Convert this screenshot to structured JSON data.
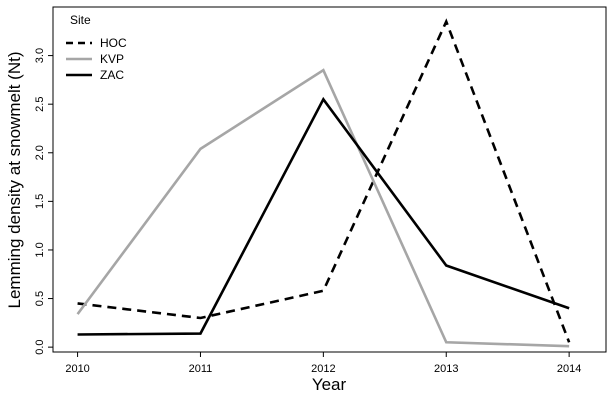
{
  "chart_data": {
    "type": "line",
    "title": "",
    "xlabel": "Year",
    "ylabel": "Lemming density at snowmelt (Nt)",
    "x": [
      2010,
      2011,
      2012,
      2013,
      2014
    ],
    "x_ticks": [
      "2010",
      "2011",
      "2012",
      "2013",
      "2014"
    ],
    "y_ticks": [
      "0.0",
      "0.5",
      "1.0",
      "1.5",
      "2.0",
      "2.5",
      "3.0"
    ],
    "xlim": [
      2009.8,
      2014.3
    ],
    "ylim": [
      -0.05,
      3.5
    ],
    "grid": false,
    "legend": {
      "title": "Site",
      "position": "top-left"
    },
    "series": [
      {
        "name": "HOC",
        "values": [
          0.45,
          0.3,
          0.58,
          3.35,
          0.05
        ],
        "color": "#000000",
        "dash": "dashed"
      },
      {
        "name": "KVP",
        "values": [
          0.34,
          2.04,
          2.85,
          0.05,
          0.01
        ],
        "color": "#a6a6a6",
        "dash": "solid"
      },
      {
        "name": "ZAC",
        "values": [
          0.13,
          0.14,
          2.55,
          0.84,
          0.4
        ],
        "color": "#000000",
        "dash": "solid"
      }
    ]
  }
}
